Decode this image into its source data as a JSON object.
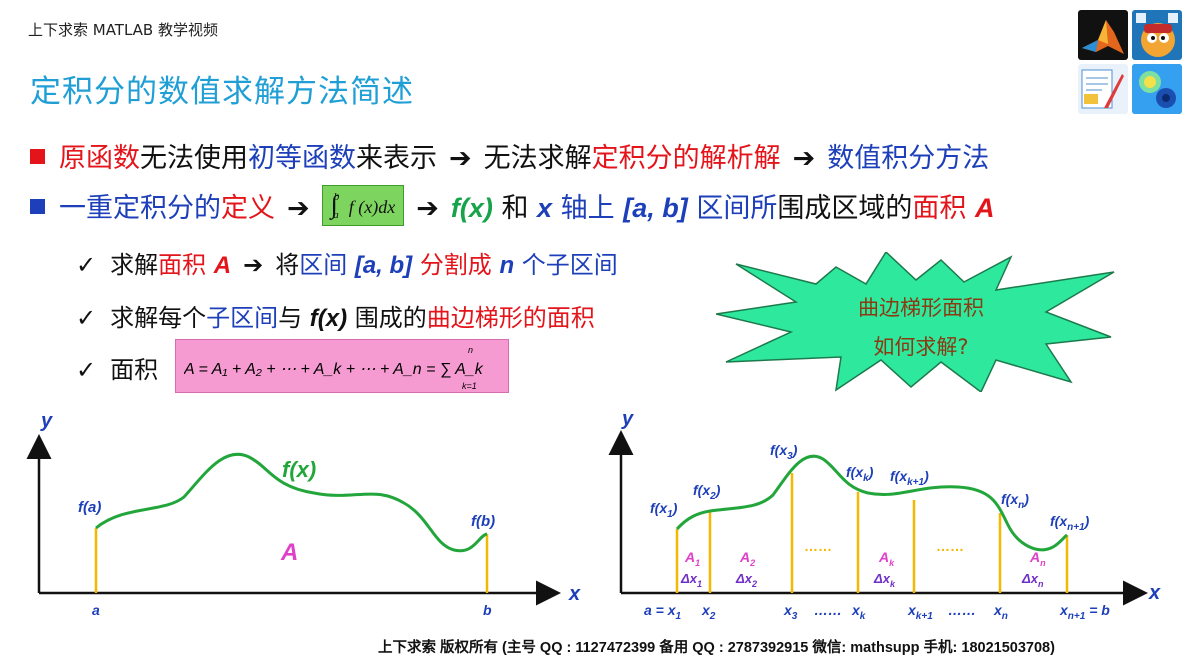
{
  "header": {
    "brand": "上下求索 MATLAB 教学视频",
    "title": "定积分的数值求解方法简述"
  },
  "icons": [
    "matlab-logo-icon",
    "cartoon-mascot-icon",
    "blueprint-icon",
    "heatmap-icon"
  ],
  "bullets": {
    "line1": {
      "a": "原函数",
      "b": "无法使用",
      "c": "初等函数",
      "d": "来表示",
      "arrow1": "➔",
      "e": "无法求解",
      "f": "定积分的解析解",
      "arrow2": "➔",
      "g": "数值积分方法"
    },
    "line2": {
      "a": "一重定积分的",
      "b": "定义",
      "arrow1": "➔",
      "formula_upper": "b",
      "formula_lower": "a",
      "formula_body": "f (x)dx",
      "arrow2": "➔",
      "fx": "f(x)",
      "c": "和",
      "x": "x",
      "d": "轴上",
      "interval": "[a, b]",
      "e": "区间所",
      "f": "围成区域的",
      "g": "面积",
      "A": "A"
    },
    "sub1": {
      "check": "✓",
      "a": "求解",
      "b": "面积",
      "A": "A",
      "arrow": "➔",
      "c": "将",
      "d": "区间",
      "interval": "[a, b]",
      "e": "分割成",
      "n": "n",
      "f": "个子区间"
    },
    "sub2": {
      "check": "✓",
      "a": "求解每个",
      "b": "子区间",
      "c": "与",
      "fx": "f(x)",
      "d": "围成的",
      "e": "曲边梯形的面积"
    },
    "sub3": {
      "check": "✓",
      "a": "面积",
      "formula": "A = A₁ + A₂ + ⋯ + A_k + ⋯ + A_n = ∑ A_k",
      "sum_upper": "n",
      "sum_lower": "k=1"
    }
  },
  "starburst": {
    "line1": "曲边梯形面积",
    "line2": "如何求解?"
  },
  "left_graph": {
    "y_axis": "y",
    "x_axis": "x",
    "curve_label": "f(x)",
    "fa": "f(a)",
    "fb": "f(b)",
    "area_label": "A",
    "a": "a",
    "b": "b"
  },
  "right_graph": {
    "y_axis": "y",
    "x_axis": "x",
    "f_labels": [
      "f(x",
      "1",
      ")",
      "f(x",
      "2",
      ")",
      "f(x",
      "3",
      ")",
      "f(x",
      "k",
      ")",
      "f(x",
      "k+1",
      ")",
      "f(x",
      "n",
      ")",
      "f(x",
      "n+1",
      ")"
    ],
    "area_labels": [
      "A",
      "1",
      "A",
      "2",
      "A",
      "k",
      "A",
      "n"
    ],
    "dx_labels": [
      "Δx",
      "1",
      "Δx",
      "2",
      "Δx",
      "k",
      "Δx",
      "n"
    ],
    "dots": "……",
    "x_ticks": {
      "a_eq": "a = x",
      "a_sub": "1",
      "x2": "x",
      "x2s": "2",
      "x3": "x",
      "x3s": "3",
      "xk": "x",
      "xks": "k",
      "xk1": "x",
      "xk1s": "k+1",
      "xn": "x",
      "xns": "n",
      "xn1": "x",
      "xn1s": "n+1",
      "xn1_eq": " = b"
    }
  },
  "footer": "上下求索  版权所有 (主号 QQ : 1127472399   备用 QQ : 2787392915   微信: mathsupp   手机: 18021503708)",
  "colors": {
    "title_blue": "#1f9fd6",
    "red": "#e4141b",
    "blue": "#1d3fb9",
    "curve_green": "#22a63b",
    "strip_orange": "#f5b800",
    "label_purple": "#6f2fc7",
    "area_pink": "#e040c8",
    "star_green": "#2ee89e",
    "star_text": "#8b3a12"
  }
}
